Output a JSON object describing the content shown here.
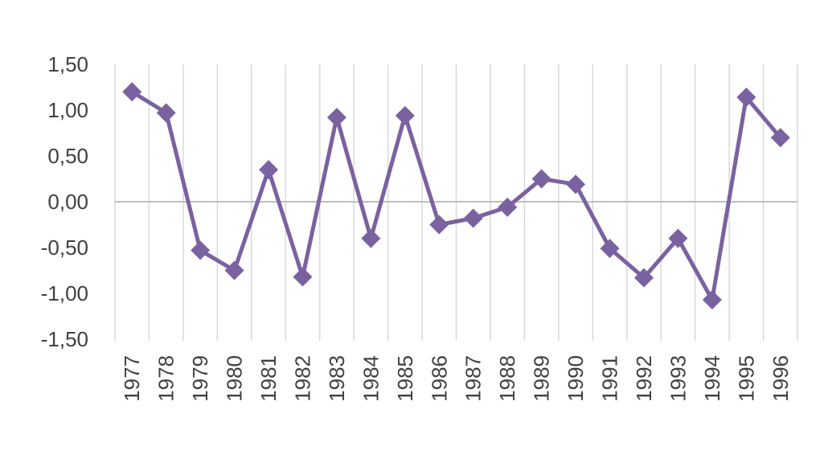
{
  "chart_data": {
    "type": "line",
    "title": "",
    "xlabel": "",
    "ylabel": "",
    "x": [
      "1977",
      "1978",
      "1979",
      "1980",
      "1981",
      "1982",
      "1983",
      "1984",
      "1985",
      "1986",
      "1987",
      "1988",
      "1989",
      "1990",
      "1991",
      "1992",
      "1993",
      "1994",
      "1995",
      "1996"
    ],
    "series": [
      {
        "values": [
          1.2,
          0.97,
          -0.53,
          -0.75,
          0.35,
          -0.82,
          0.92,
          -0.4,
          0.94,
          -0.25,
          -0.18,
          -0.06,
          0.25,
          0.19,
          -0.51,
          -0.83,
          -0.4,
          -1.07,
          1.14,
          0.7
        ],
        "color": "#7a62a0",
        "marker": "diamond"
      }
    ],
    "ylim": [
      -1.5,
      1.5
    ],
    "yticks": [
      1.5,
      1.0,
      0.5,
      0.0,
      -0.5,
      -1.0,
      -1.5
    ],
    "ytick_labels": [
      "1,50",
      "1,00",
      "0,50",
      "0,00",
      "-0,50",
      "-1,00",
      "-1,50"
    ],
    "vertical_grid": true,
    "legend": "none"
  }
}
